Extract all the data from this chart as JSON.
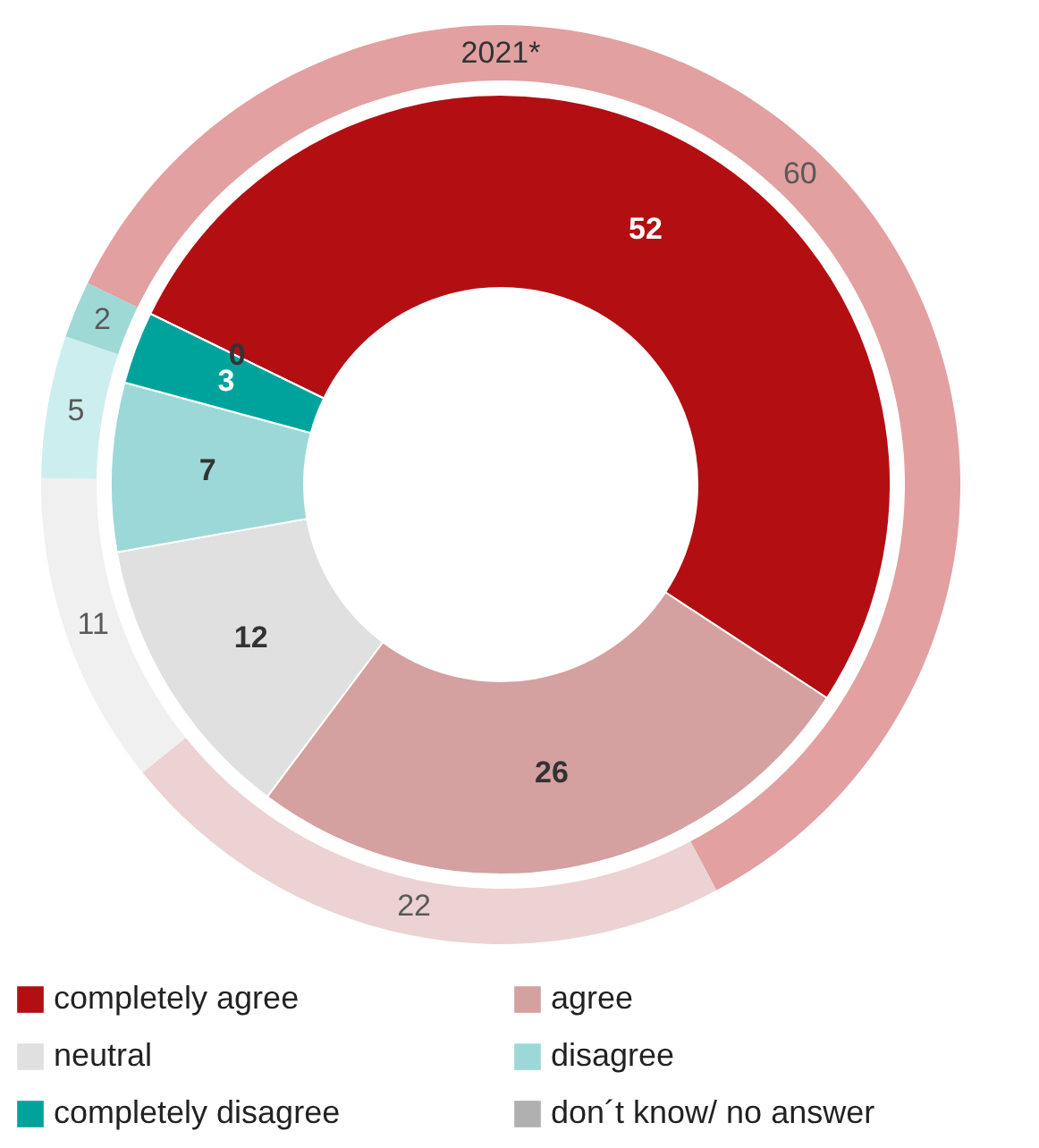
{
  "chart_data": {
    "type": "donut",
    "categories": [
      "completely agree",
      "agree",
      "neutral",
      "disagree",
      "completely disagree",
      "don´t know/ no answer"
    ],
    "colors": [
      "#b30f13",
      "#d4a0a0",
      "#e0e0e0",
      "#9dd8d8",
      "#00a39b",
      "#b0b0b0"
    ],
    "series": [
      {
        "values": [
          52,
          26,
          12,
          7,
          3,
          0
        ],
        "value_labels": [
          "52",
          "26",
          "12",
          "7",
          "3",
          "0"
        ]
      },
      {
        "name": "2021*",
        "colors": [
          "#e2a0a0",
          "#ecd2d2",
          "#f0f0f0",
          "#cdeeee",
          "#9fd9d6",
          "#d0d0d0"
        ],
        "values": [
          60,
          22,
          11,
          5,
          2,
          0
        ],
        "value_labels": [
          "60",
          "22",
          "11",
          "5",
          "2",
          null
        ]
      }
    ],
    "legend": "bottom"
  }
}
